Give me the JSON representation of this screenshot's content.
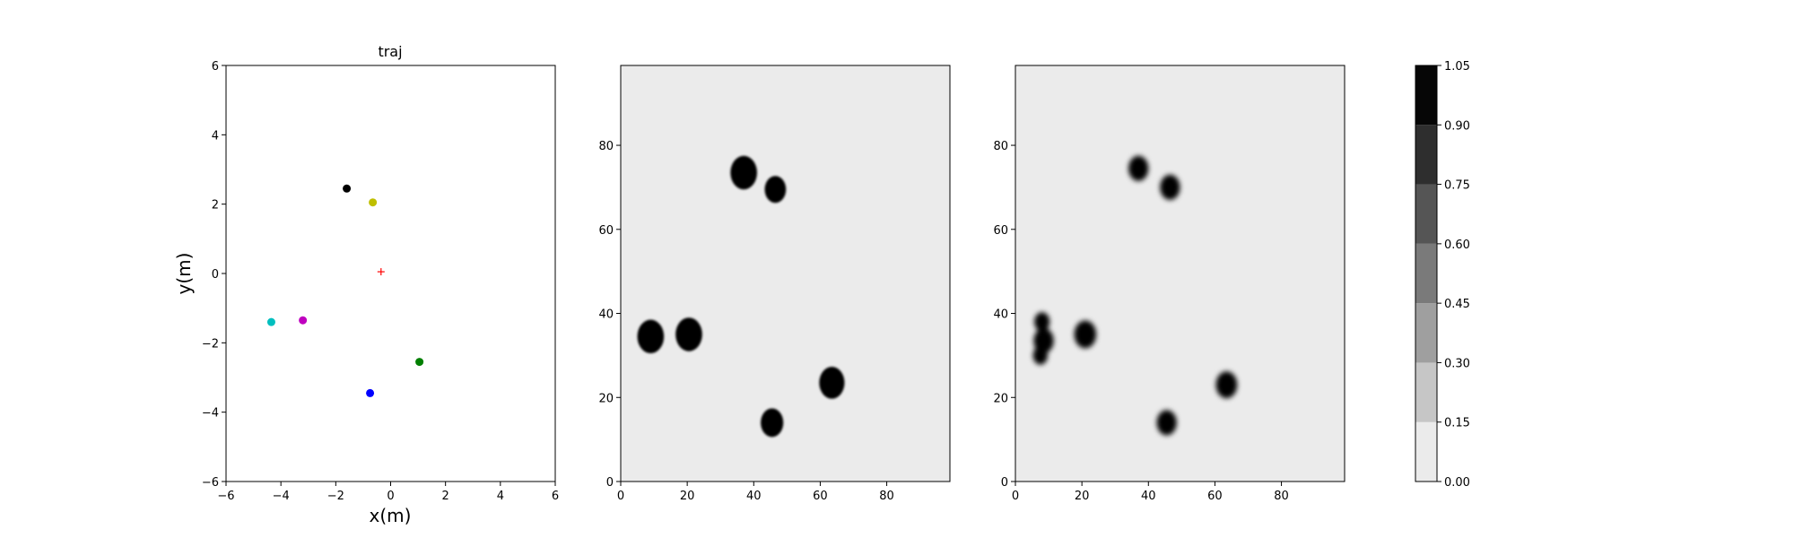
{
  "chart_data": [
    {
      "type": "scatter",
      "title": "traj",
      "xlabel": "x(m)",
      "ylabel": "y(m)",
      "xlim": [
        -6,
        6
      ],
      "ylim": [
        -6,
        6
      ],
      "xticks": [
        "−6",
        "−4",
        "−2",
        "0",
        "2",
        "4",
        "6"
      ],
      "yticks": [
        "−6",
        "−4",
        "−2",
        "0",
        "2",
        "4",
        "6"
      ],
      "xtick_values": [
        -6,
        -4,
        -2,
        0,
        2,
        4,
        6
      ],
      "ytick_values": [
        -6,
        -4,
        -2,
        0,
        2,
        4,
        6
      ],
      "points": [
        {
          "x": -1.6,
          "y": 2.45,
          "color": "#000000",
          "marker": "circle"
        },
        {
          "x": -0.65,
          "y": 2.05,
          "color": "#bfbf00",
          "marker": "circle"
        },
        {
          "x": -4.35,
          "y": -1.4,
          "color": "#00bfbf",
          "marker": "circle"
        },
        {
          "x": -3.2,
          "y": -1.35,
          "color": "#bf00bf",
          "marker": "circle"
        },
        {
          "x": 1.05,
          "y": -2.55,
          "color": "#007f00",
          "marker": "circle"
        },
        {
          "x": -0.75,
          "y": -3.45,
          "color": "#0000ff",
          "marker": "circle"
        },
        {
          "x": -0.35,
          "y": 0.05,
          "color": "#ff0000",
          "marker": "plus"
        }
      ]
    },
    {
      "type": "heatmap",
      "title": "",
      "xlim": [
        0,
        99
      ],
      "ylim": [
        0,
        99
      ],
      "xticks": [
        "0",
        "20",
        "40",
        "60",
        "80"
      ],
      "yticks": [
        "0",
        "20",
        "40",
        "60",
        "80"
      ],
      "tick_values": [
        0,
        20,
        40,
        60,
        80
      ],
      "background_value": 0.05,
      "blobs": [
        {
          "x": 9,
          "y": 34.5,
          "r": 4
        },
        {
          "x": 20.5,
          "y": 35,
          "r": 4
        },
        {
          "x": 37,
          "y": 73.5,
          "r": 4
        },
        {
          "x": 46.5,
          "y": 69.5,
          "r": 3.2
        },
        {
          "x": 45.5,
          "y": 14,
          "r": 3.4
        },
        {
          "x": 63.5,
          "y": 23.5,
          "r": 3.8
        }
      ]
    },
    {
      "type": "heatmap",
      "title": "",
      "xlim": [
        0,
        99
      ],
      "ylim": [
        0,
        99
      ],
      "xticks": [
        "0",
        "20",
        "40",
        "60",
        "80"
      ],
      "yticks": [
        "0",
        "20",
        "40",
        "60",
        "80"
      ],
      "tick_values": [
        0,
        20,
        40,
        60,
        80
      ],
      "background_value": 0.05,
      "blobs": [
        {
          "x": 8,
          "y": 38,
          "r": 2.3
        },
        {
          "x": 8.5,
          "y": 33.5,
          "r": 3
        },
        {
          "x": 7.5,
          "y": 30,
          "r": 2.2
        },
        {
          "x": 21,
          "y": 35,
          "r": 3.3
        },
        {
          "x": 37,
          "y": 74.5,
          "r": 3
        },
        {
          "x": 46.5,
          "y": 70,
          "r": 3
        },
        {
          "x": 45.5,
          "y": 14,
          "r": 3
        },
        {
          "x": 63.5,
          "y": 23,
          "r": 3.2
        }
      ]
    }
  ],
  "colorbar": {
    "ticks": [
      "0.00",
      "0.15",
      "0.30",
      "0.45",
      "0.60",
      "0.75",
      "0.90",
      "1.05"
    ],
    "tick_values": [
      0,
      0.15,
      0.3,
      0.45,
      0.6,
      0.75,
      0.9,
      1.05
    ],
    "levels": [
      {
        "from": 0.0,
        "to": 0.15,
        "color": "#ebebeb"
      },
      {
        "from": 0.15,
        "to": 0.3,
        "color": "#c6c6c6"
      },
      {
        "from": 0.3,
        "to": 0.45,
        "color": "#9f9f9f"
      },
      {
        "from": 0.45,
        "to": 0.6,
        "color": "#7a7a7a"
      },
      {
        "from": 0.6,
        "to": 0.75,
        "color": "#555555"
      },
      {
        "from": 0.75,
        "to": 0.9,
        "color": "#2e2e2e"
      },
      {
        "from": 0.9,
        "to": 1.05,
        "color": "#060606"
      }
    ]
  }
}
